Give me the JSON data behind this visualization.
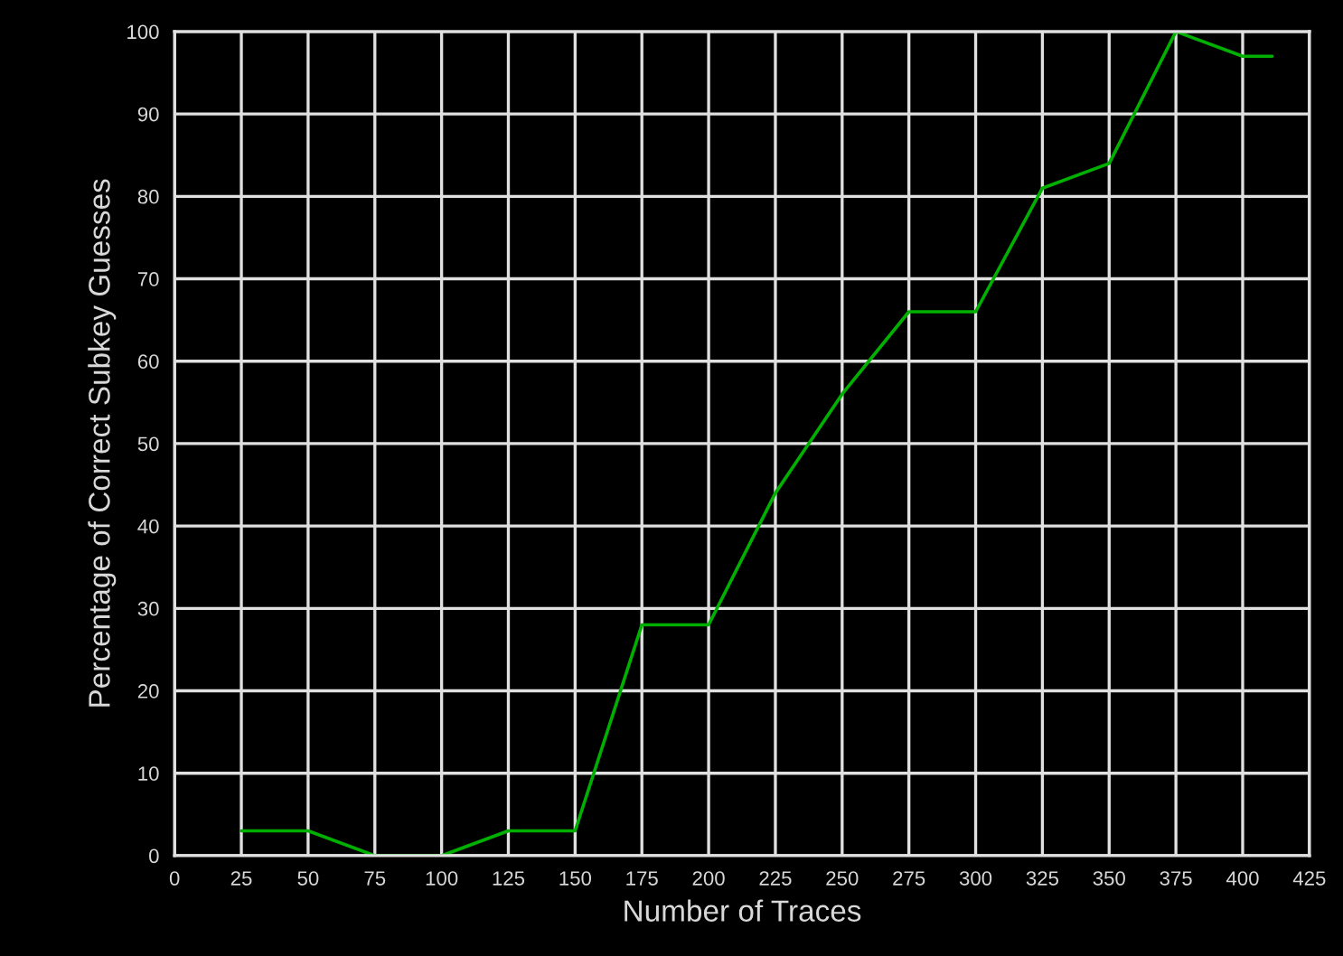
{
  "chart_data": {
    "type": "line",
    "xlabel": "Number of Traces",
    "ylabel": "Percentage of Correct Subkey Guesses",
    "x": [
      25,
      50,
      75,
      100,
      125,
      150,
      175,
      200,
      225,
      250,
      275,
      300,
      325,
      350,
      375,
      400,
      411
    ],
    "series": [
      {
        "color": "#00b000",
        "values": [
          3,
          3,
          0,
          0,
          3,
          3,
          28,
          28,
          44,
          56,
          66,
          66,
          81,
          84,
          100,
          97,
          97
        ]
      }
    ],
    "xlim": [
      0,
      425
    ],
    "xticks": [
      0,
      25,
      50,
      75,
      100,
      125,
      150,
      175,
      200,
      225,
      250,
      275,
      300,
      325,
      350,
      375,
      400,
      425
    ],
    "ylim": [
      0,
      100
    ],
    "yticks": [
      0,
      10,
      20,
      30,
      40,
      50,
      60,
      70,
      80,
      90,
      100
    ],
    "grid": true,
    "marker": "none",
    "line_style": "solid"
  }
}
